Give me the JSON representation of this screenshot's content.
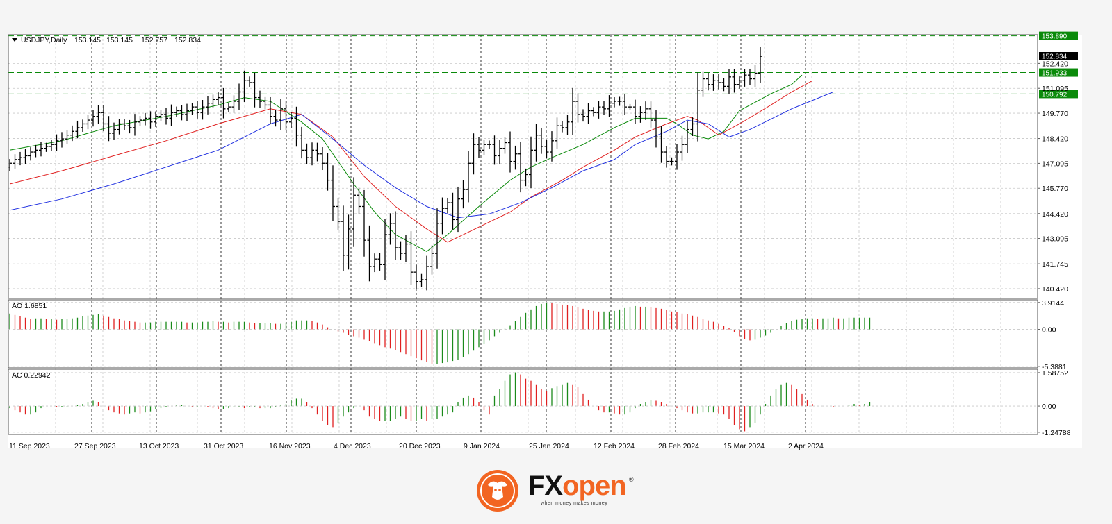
{
  "chart_data": {
    "type": "ohlc",
    "instrument": "USDJPY,Daily",
    "ohlc_header": [
      "153.145",
      "153.145",
      "152.757",
      "152.834"
    ],
    "price_axis": {
      "ticks": [
        "152.420",
        "151.095",
        "149.770",
        "148.420",
        "147.095",
        "145.770",
        "144.420",
        "143.095",
        "141.745",
        "140.420"
      ],
      "ylim": [
        139.9,
        153.95
      ],
      "current_price": "152.834",
      "levels": [
        {
          "value": 153.89,
          "label": "153.890",
          "color": "#0a8a0a"
        },
        {
          "value": 151.933,
          "label": "151.933",
          "color": "#0a8a0a"
        },
        {
          "value": 150.792,
          "label": "150.792",
          "color": "#0a8a0a"
        }
      ]
    },
    "x_axis_labels": [
      "11 Sep 2023",
      "27 Sep 2023",
      "13 Oct 2023",
      "31 Oct 2023",
      "16 Nov 2023",
      "4 Dec 2023",
      "20 Dec 2023",
      "9 Jan 2024",
      "25 Jan 2024",
      "12 Feb 2024",
      "28 Feb 2024",
      "15 Mar 2024",
      "2 Apr 2024"
    ],
    "close": [
      147.1,
      147.3,
      147.4,
      147.5,
      147.7,
      147.8,
      147.9,
      148.0,
      148.1,
      148.3,
      148.4,
      148.6,
      148.8,
      149.0,
      149.2,
      149.4,
      149.6,
      149.8,
      149.2,
      148.7,
      148.9,
      149.2,
      149.1,
      149.0,
      149.3,
      149.4,
      149.5,
      149.3,
      149.6,
      149.7,
      149.5,
      149.8,
      149.9,
      149.7,
      149.9,
      150.1,
      149.8,
      150.1,
      150.3,
      150.5,
      150.6,
      150.0,
      150.1,
      150.4,
      150.9,
      151.5,
      151.4,
      150.6,
      150.4,
      150.2,
      149.6,
      149.4,
      150.0,
      149.3,
      149.5,
      148.6,
      147.8,
      147.4,
      147.8,
      147.6,
      147.1,
      146.2,
      144.8,
      144.0,
      142.2,
      143.6,
      145.4,
      144.8,
      143.0,
      141.6,
      142.0,
      141.7,
      143.3,
      143.9,
      142.6,
      142.3,
      142.8,
      141.3,
      140.8,
      140.9,
      141.6,
      142.3,
      143.9,
      144.7,
      145.0,
      144.1,
      145.2,
      145.7,
      147.1,
      148.1,
      147.8,
      148.1,
      148.1,
      147.5,
      147.9,
      148.2,
      147.2,
      147.6,
      146.2,
      146.5,
      147.8,
      148.6,
      148.0,
      147.7,
      148.3,
      149.1,
      149.0,
      149.3,
      150.4,
      149.7,
      149.6,
      149.9,
      149.8,
      150.1,
      150.0,
      150.3,
      150.4,
      150.4,
      150.1,
      150.1,
      149.6,
      149.8,
      150.0,
      149.4,
      148.5,
      147.7,
      147.2,
      147.2,
      147.7,
      148.1,
      148.9,
      149.2,
      151.0,
      151.6,
      151.3,
      151.5,
      151.4,
      151.2,
      151.7,
      151.3,
      151.5,
      151.8,
      151.6,
      151.9,
      152.8
    ],
    "ma_lines": [
      {
        "color": "#0a8a0a",
        "points": [
          [
            0,
            147.8
          ],
          [
            10,
            148.3
          ],
          [
            20,
            149.1
          ],
          [
            30,
            149.6
          ],
          [
            40,
            150.2
          ],
          [
            45,
            150.6
          ],
          [
            50,
            150.4
          ],
          [
            56,
            149.3
          ],
          [
            60,
            148.4
          ],
          [
            66,
            146.0
          ],
          [
            70,
            144.5
          ],
          [
            74,
            143.3
          ],
          [
            78,
            142.7
          ],
          [
            80,
            142.4
          ],
          [
            84,
            143.3
          ],
          [
            90,
            144.8
          ],
          [
            96,
            146.2
          ],
          [
            100,
            146.9
          ],
          [
            104,
            147.4
          ],
          [
            110,
            148.1
          ],
          [
            116,
            149.0
          ],
          [
            120,
            149.5
          ],
          [
            126,
            149.5
          ],
          [
            128,
            149.2
          ],
          [
            131,
            148.6
          ],
          [
            134,
            148.4
          ],
          [
            137,
            148.8
          ],
          [
            140,
            149.9
          ],
          [
            146,
            150.8
          ],
          [
            150,
            151.3
          ],
          [
            152,
            151.8
          ]
        ]
      },
      {
        "color": "#e02020",
        "points": [
          [
            0,
            146.0
          ],
          [
            10,
            146.7
          ],
          [
            20,
            147.5
          ],
          [
            30,
            148.3
          ],
          [
            40,
            149.2
          ],
          [
            50,
            150.0
          ],
          [
            56,
            149.7
          ],
          [
            62,
            148.5
          ],
          [
            68,
            146.4
          ],
          [
            74,
            144.8
          ],
          [
            80,
            143.6
          ],
          [
            84,
            142.9
          ],
          [
            90,
            143.7
          ],
          [
            96,
            144.5
          ],
          [
            100,
            145.3
          ],
          [
            106,
            146.2
          ],
          [
            110,
            146.9
          ],
          [
            116,
            147.8
          ],
          [
            120,
            148.5
          ],
          [
            126,
            149.2
          ],
          [
            130,
            149.6
          ],
          [
            132,
            149.4
          ],
          [
            136,
            148.6
          ],
          [
            140,
            149.2
          ],
          [
            146,
            150.2
          ],
          [
            150,
            150.9
          ],
          [
            154,
            151.5
          ]
        ]
      },
      {
        "color": "#2030e0",
        "points": [
          [
            0,
            144.6
          ],
          [
            10,
            145.2
          ],
          [
            20,
            146.0
          ],
          [
            30,
            146.9
          ],
          [
            40,
            147.8
          ],
          [
            50,
            149.2
          ],
          [
            56,
            149.7
          ],
          [
            62,
            148.4
          ],
          [
            68,
            147.0
          ],
          [
            74,
            145.8
          ],
          [
            80,
            144.8
          ],
          [
            86,
            144.2
          ],
          [
            92,
            144.4
          ],
          [
            98,
            145.0
          ],
          [
            104,
            145.8
          ],
          [
            110,
            146.7
          ],
          [
            116,
            147.3
          ],
          [
            120,
            148.1
          ],
          [
            126,
            148.8
          ],
          [
            130,
            149.4
          ],
          [
            134,
            149.2
          ],
          [
            138,
            148.5
          ],
          [
            142,
            148.9
          ],
          [
            150,
            150.0
          ],
          [
            158,
            150.9
          ]
        ]
      }
    ],
    "ao": {
      "label": "AO 1.6851",
      "ticks": [
        "3.9144",
        "0.00",
        "-5.3881"
      ],
      "ylim": [
        -5.6,
        4.3
      ],
      "values": [
        2.3,
        2.1,
        1.9,
        1.7,
        1.5,
        1.6,
        1.6,
        1.5,
        1.5,
        1.4,
        1.5,
        1.5,
        1.6,
        1.7,
        1.9,
        2.0,
        2.1,
        2.2,
        2.0,
        1.8,
        1.6,
        1.5,
        1.3,
        1.2,
        1.1,
        1.0,
        1.0,
        1.0,
        1.1,
        1.1,
        1.1,
        1.1,
        1.1,
        1.1,
        1.0,
        1.0,
        1.0,
        1.1,
        1.1,
        1.2,
        1.1,
        1.1,
        1.0,
        1.1,
        1.1,
        1.1,
        1.0,
        0.9,
        0.9,
        0.9,
        0.9,
        0.8,
        0.8,
        1.0,
        1.1,
        1.3,
        1.3,
        1.3,
        1.2,
        1.0,
        0.7,
        0.3,
        0.0,
        -0.3,
        -0.5,
        -0.8,
        -1.0,
        -1.2,
        -1.5,
        -1.7,
        -2.0,
        -2.3,
        -2.6,
        -2.8,
        -3.0,
        -3.3,
        -3.6,
        -3.9,
        -4.2,
        -4.5,
        -4.7,
        -5.0,
        -5.0,
        -4.9,
        -4.8,
        -4.6,
        -4.4,
        -4.0,
        -3.6,
        -3.1,
        -2.6,
        -2.1,
        -1.6,
        -1.0,
        -0.5,
        0.1,
        0.6,
        1.2,
        1.8,
        2.4,
        2.9,
        3.4,
        3.7,
        3.9,
        3.8,
        3.7,
        3.6,
        3.5,
        3.4,
        3.2,
        3.0,
        2.8,
        2.7,
        2.6,
        2.6,
        2.6,
        2.7,
        2.9,
        3.1,
        3.3,
        3.4,
        3.3,
        3.3,
        3.2,
        3.1,
        3.0,
        2.8,
        2.6,
        2.5,
        2.3,
        2.2,
        2.0,
        1.8,
        1.5,
        1.3,
        1.1,
        0.8,
        0.5,
        0.2,
        -0.4,
        -1.0,
        -1.4,
        -1.6,
        -1.5,
        -1.2,
        -0.9,
        -0.5,
        0.0,
        0.5,
        0.9,
        1.2,
        1.4,
        1.5,
        1.6,
        1.6,
        1.5,
        1.6,
        1.6,
        1.7,
        1.6,
        1.6,
        1.7,
        1.7,
        1.7,
        1.7,
        1.7
      ]
    },
    "ac": {
      "label": "AC 0.22942",
      "ticks": [
        "1.58752",
        "0.00",
        "-1.24788"
      ],
      "ylim": [
        -1.35,
        1.75
      ],
      "values": [
        -0.1,
        -0.2,
        -0.3,
        -0.4,
        -0.4,
        -0.3,
        -0.1,
        0.0,
        0.0,
        -0.05,
        -0.05,
        -0.05,
        0.0,
        0.05,
        0.1,
        0.2,
        0.25,
        0.2,
        0.0,
        -0.2,
        -0.3,
        -0.35,
        -0.4,
        -0.35,
        -0.3,
        -0.35,
        -0.3,
        -0.25,
        -0.15,
        -0.1,
        -0.05,
        0.0,
        0.05,
        0.05,
        0.0,
        -0.05,
        -0.05,
        0.0,
        -0.05,
        -0.1,
        -0.15,
        -0.15,
        -0.1,
        -0.05,
        -0.05,
        -0.1,
        -0.05,
        -0.05,
        -0.1,
        -0.1,
        -0.1,
        -0.05,
        0.05,
        0.1,
        0.3,
        0.35,
        0.35,
        0.2,
        -0.1,
        -0.4,
        -0.7,
        -0.9,
        -1.0,
        -0.8,
        -0.5,
        -0.3,
        -0.1,
        0.0,
        -0.2,
        -0.5,
        -0.6,
        -0.7,
        -0.7,
        -0.7,
        -0.6,
        -0.5,
        -0.6,
        -0.7,
        -0.7,
        -0.6,
        -0.7,
        -0.6,
        -0.6,
        -0.5,
        -0.4,
        -0.3,
        0.2,
        0.4,
        0.5,
        0.4,
        0.2,
        -0.2,
        -0.4,
        0.5,
        0.8,
        1.2,
        1.5,
        1.6,
        1.5,
        1.3,
        1.2,
        1.0,
        0.8,
        0.7,
        0.85,
        0.95,
        1.0,
        1.1,
        1.0,
        0.9,
        0.6,
        0.3,
        0.0,
        -0.2,
        -0.3,
        -0.3,
        -0.35,
        -0.4,
        -0.4,
        -0.3,
        -0.1,
        0.1,
        0.2,
        0.3,
        0.25,
        0.2,
        0.1,
        0.0,
        -0.1,
        -0.2,
        -0.3,
        -0.35,
        -0.35,
        -0.3,
        -0.3,
        -0.3,
        -0.35,
        -0.4,
        -0.6,
        -0.9,
        -1.1,
        -1.2,
        -1.0,
        -0.8,
        -0.4,
        0.1,
        0.5,
        0.8,
        1.0,
        1.1,
        1.0,
        0.8,
        0.6,
        0.3,
        0.1,
        0.0,
        0.0,
        0.0,
        -0.05,
        0.0,
        0.0,
        0.05,
        0.1,
        0.05,
        0.1,
        0.2
      ]
    }
  },
  "brand": {
    "name_part1": "FX",
    "name_part2": "open",
    "registered": "®",
    "tagline": "when money makes money",
    "colors": {
      "orange": "#f26522",
      "dark": "#111111"
    }
  }
}
